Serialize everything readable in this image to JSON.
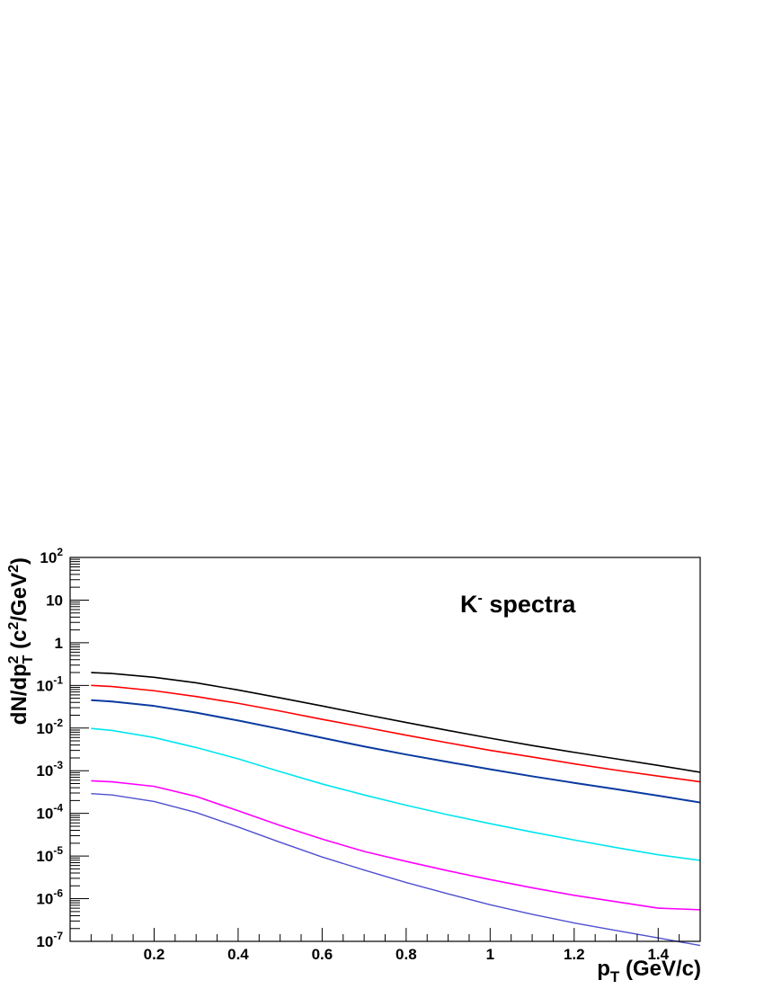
{
  "chart_data": {
    "type": "line",
    "annotation": {
      "base": "K",
      "sup": "-",
      "rest": " spectra"
    },
    "xlabel": {
      "base": "p",
      "sub": "T",
      "rest": " (GeV/c)"
    },
    "ylabel": {
      "p1": "dN/dp",
      "sup1": "2",
      "sub1": "T",
      "p2": " (c",
      "sup2": "2",
      "p3": "/GeV",
      "sup3": "2",
      "p4": ")"
    },
    "xlim": [
      0,
      1.5
    ],
    "ylim": [
      1e-07,
      100
    ],
    "yscale": "log",
    "grid": false,
    "x_ticks": [
      0.2,
      0.4,
      0.6,
      0.8,
      1,
      1.2,
      1.4
    ],
    "x_tick_labels": [
      "0.2",
      "0.4",
      "0.6",
      "0.8",
      "1",
      "1.2",
      "1.4"
    ],
    "y_tick_labels": [
      {
        "value": 1e-07,
        "base": "10",
        "exp": "-7"
      },
      {
        "value": 1e-06,
        "base": "10",
        "exp": "-6"
      },
      {
        "value": 1e-05,
        "base": "10",
        "exp": "-5"
      },
      {
        "value": 0.0001,
        "base": "10",
        "exp": "-4"
      },
      {
        "value": 0.001,
        "base": "10",
        "exp": "-3"
      },
      {
        "value": 0.01,
        "base": "10",
        "exp": "-2"
      },
      {
        "value": 0.1,
        "base": "10",
        "exp": "-1"
      },
      {
        "value": 1,
        "base": "1",
        "exp": ""
      },
      {
        "value": 10,
        "base": "10",
        "exp": ""
      },
      {
        "value": 100,
        "base": "10",
        "exp": "2"
      }
    ],
    "series": [
      {
        "color": "#000000",
        "width": 1.6,
        "x": [
          0.05,
          0.1,
          0.2,
          0.3,
          0.4,
          0.5,
          0.6,
          0.7,
          0.8,
          0.9,
          1.0,
          1.1,
          1.2,
          1.3,
          1.4,
          1.5
        ],
        "y": [
          0.2,
          0.19,
          0.155,
          0.115,
          0.078,
          0.051,
          0.033,
          0.021,
          0.0135,
          0.0088,
          0.0058,
          0.0039,
          0.0027,
          0.0019,
          0.00133,
          0.00092
        ]
      },
      {
        "color": "#ff0000",
        "width": 1.6,
        "x": [
          0.05,
          0.1,
          0.2,
          0.3,
          0.4,
          0.5,
          0.6,
          0.7,
          0.8,
          0.9,
          1.0,
          1.1,
          1.2,
          1.3,
          1.4,
          1.5
        ],
        "y": [
          0.1,
          0.094,
          0.075,
          0.055,
          0.038,
          0.025,
          0.016,
          0.0105,
          0.0068,
          0.0045,
          0.003,
          0.0021,
          0.00145,
          0.00103,
          0.00075,
          0.00055
        ]
      },
      {
        "color": "#0a3aa0",
        "width": 2.0,
        "x": [
          0.05,
          0.1,
          0.2,
          0.3,
          0.4,
          0.5,
          0.6,
          0.7,
          0.8,
          0.9,
          1.0,
          1.1,
          1.2,
          1.3,
          1.4,
          1.5
        ],
        "y": [
          0.045,
          0.042,
          0.033,
          0.023,
          0.015,
          0.0095,
          0.0059,
          0.0037,
          0.0024,
          0.0016,
          0.00108,
          0.00074,
          0.00052,
          0.00037,
          0.00026,
          0.00018
        ]
      },
      {
        "color": "#00e5ee",
        "width": 1.6,
        "x": [
          0.05,
          0.1,
          0.2,
          0.3,
          0.4,
          0.5,
          0.6,
          0.7,
          0.8,
          0.9,
          1.0,
          1.1,
          1.2,
          1.3,
          1.4,
          1.5
        ],
        "y": [
          0.0098,
          0.0088,
          0.006,
          0.0035,
          0.0019,
          0.00095,
          0.00049,
          0.00027,
          0.000155,
          9.25e-05,
          5.75e-05,
          3.65e-05,
          2.38e-05,
          1.58e-05,
          1.07e-05,
          7.9e-06
        ]
      },
      {
        "color": "#ff00ff",
        "width": 1.6,
        "x": [
          0.05,
          0.1,
          0.2,
          0.3,
          0.4,
          0.5,
          0.6,
          0.7,
          0.8,
          0.9,
          1.0,
          1.1,
          1.2,
          1.3,
          1.4,
          1.5
        ],
        "y": [
          0.00058,
          0.00055,
          0.00043,
          0.00025,
          0.000115,
          5.2e-05,
          2.5e-05,
          1.28e-05,
          7.5e-06,
          4.5e-06,
          2.8e-06,
          1.8e-06,
          1.2e-06,
          8.5e-07,
          6e-07,
          5.5e-07
        ]
      },
      {
        "color": "#5050d0",
        "width": 1.4,
        "x": [
          0.05,
          0.1,
          0.2,
          0.3,
          0.4,
          0.5,
          0.6,
          0.7,
          0.8,
          0.9,
          1.0,
          1.1,
          1.2,
          1.3,
          1.4,
          1.5
        ],
        "y": [
          0.00029,
          0.00027,
          0.00019,
          0.000105,
          4.8e-05,
          2.1e-05,
          9.5e-06,
          4.7e-06,
          2.4e-06,
          1.3e-06,
          7.2e-07,
          4.3e-07,
          2.7e-07,
          1.8e-07,
          1.2e-07,
          8e-08
        ]
      }
    ]
  }
}
